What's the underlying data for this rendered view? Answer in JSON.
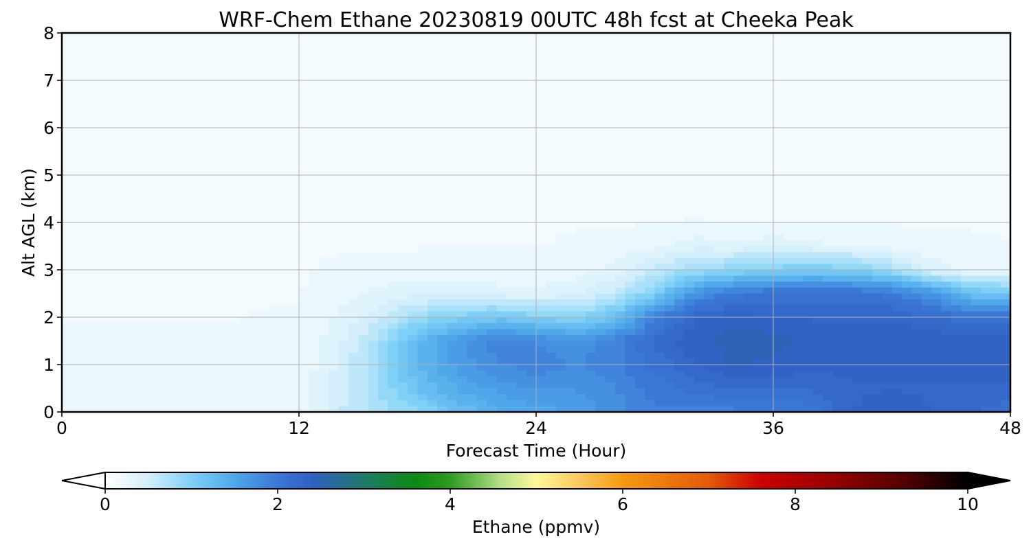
{
  "chart_data": {
    "type": "heatmap",
    "title": "WRF-Chem Ethane  20230819 00UTC 48h fcst at Cheeka Peak",
    "xlabel": "Forecast Time (Hour)",
    "ylabel": "Alt AGL (km)",
    "xlim": [
      0,
      48
    ],
    "ylim": [
      0,
      8
    ],
    "x_ticks": [
      0,
      12,
      24,
      36,
      48
    ],
    "y_ticks": [
      0,
      1,
      2,
      3,
      4,
      5,
      6,
      7,
      8
    ],
    "grid": true,
    "colorbar": {
      "label": "Ethane  (ppmv)",
      "range": [
        0,
        10
      ],
      "ticks": [
        0,
        2,
        4,
        6,
        8,
        10
      ],
      "extend": "both",
      "orientation": "horizontal",
      "stops": [
        {
          "v": 0,
          "c": "#ffffff"
        },
        {
          "v": 0.5,
          "c": "#d4effb"
        },
        {
          "v": 1.0,
          "c": "#7fd0f7"
        },
        {
          "v": 1.5,
          "c": "#4ea8ea"
        },
        {
          "v": 2.0,
          "c": "#3b78d6"
        },
        {
          "v": 2.4,
          "c": "#3060c4"
        },
        {
          "v": 3.0,
          "c": "#1f7a6a"
        },
        {
          "v": 3.6,
          "c": "#0a8a10"
        },
        {
          "v": 4.0,
          "c": "#2e9c1f"
        },
        {
          "v": 4.6,
          "c": "#b8e08a"
        },
        {
          "v": 5.0,
          "c": "#fff79a"
        },
        {
          "v": 5.6,
          "c": "#f8c050"
        },
        {
          "v": 6.0,
          "c": "#f59a10"
        },
        {
          "v": 7.0,
          "c": "#e35a08"
        },
        {
          "v": 7.6,
          "c": "#cc0000"
        },
        {
          "v": 8.4,
          "c": "#9a0000"
        },
        {
          "v": 9.2,
          "c": "#5a0000"
        },
        {
          "v": 10,
          "c": "#000000"
        }
      ]
    },
    "times": [
      0,
      4,
      8,
      12,
      14,
      16,
      18,
      20,
      22,
      24,
      26,
      28,
      30,
      32,
      34,
      36,
      38,
      40,
      42,
      44,
      46,
      48
    ],
    "altitudes": [
      0,
      0.5,
      1,
      1.5,
      2,
      2.5,
      3,
      3.5,
      4,
      5,
      6,
      7,
      8
    ],
    "values": [
      [
        0.3,
        0.28,
        0.2,
        0.22,
        0.55,
        0.75,
        0.9,
        1.2,
        1.4,
        1.5,
        1.6,
        1.75,
        1.9,
        1.9,
        1.9,
        1.9,
        2.0,
        2.3,
        2.45,
        2.3,
        2.2,
        2.1
      ],
      [
        0.22,
        0.22,
        0.2,
        0.22,
        0.5,
        0.8,
        1.2,
        1.45,
        1.6,
        1.7,
        1.7,
        1.8,
        2.0,
        2.1,
        2.2,
        2.2,
        2.2,
        2.3,
        2.3,
        2.3,
        2.3,
        2.3
      ],
      [
        0.2,
        0.2,
        0.2,
        0.22,
        0.45,
        0.8,
        1.3,
        1.6,
        1.8,
        1.9,
        1.8,
        1.9,
        2.1,
        2.3,
        2.45,
        2.4,
        2.35,
        2.35,
        2.4,
        2.4,
        2.4,
        2.4
      ],
      [
        0.2,
        0.2,
        0.2,
        0.22,
        0.4,
        0.75,
        1.3,
        1.65,
        1.9,
        1.8,
        1.7,
        1.9,
        2.2,
        2.4,
        2.5,
        2.5,
        2.4,
        2.4,
        2.4,
        2.4,
        2.4,
        2.4
      ],
      [
        0.18,
        0.18,
        0.18,
        0.2,
        0.32,
        0.5,
        0.8,
        1.0,
        1.1,
        1.0,
        0.9,
        1.2,
        1.9,
        2.3,
        2.4,
        2.3,
        2.3,
        2.3,
        2.3,
        2.2,
        2.1,
        2.1
      ],
      [
        0.18,
        0.18,
        0.18,
        0.18,
        0.25,
        0.35,
        0.4,
        0.4,
        0.35,
        0.33,
        0.4,
        0.6,
        1.0,
        1.7,
        2.0,
        2.1,
        2.1,
        2.1,
        2.0,
        1.7,
        1.2,
        1.1
      ],
      [
        0.18,
        0.18,
        0.18,
        0.18,
        0.2,
        0.22,
        0.24,
        0.24,
        0.24,
        0.24,
        0.26,
        0.35,
        0.6,
        0.8,
        0.9,
        1.0,
        1.05,
        1.0,
        0.8,
        0.4,
        0.28,
        0.28
      ],
      [
        0.18,
        0.18,
        0.18,
        0.18,
        0.18,
        0.18,
        0.18,
        0.18,
        0.18,
        0.18,
        0.2,
        0.22,
        0.26,
        0.4,
        0.35,
        0.4,
        0.35,
        0.3,
        0.25,
        0.22,
        0.2,
        0.2
      ],
      [
        0.18,
        0.18,
        0.18,
        0.18,
        0.18,
        0.18,
        0.18,
        0.18,
        0.18,
        0.18,
        0.18,
        0.18,
        0.18,
        0.19,
        0.18,
        0.18,
        0.18,
        0.18,
        0.18,
        0.18,
        0.18,
        0.16
      ],
      [
        0.18,
        0.18,
        0.16,
        0.18,
        0.18,
        0.18,
        0.14,
        0.14,
        0.14,
        0.14,
        0.18,
        0.18,
        0.18,
        0.18,
        0.18,
        0.18,
        0.18,
        0.18,
        0.18,
        0.18,
        0.14,
        0.14
      ],
      [
        0.14,
        0.14,
        0.14,
        0.14,
        0.14,
        0.14,
        0.14,
        0.14,
        0.14,
        0.14,
        0.14,
        0.18,
        0.18,
        0.18,
        0.18,
        0.18,
        0.18,
        0.18,
        0.14,
        0.14,
        0.14,
        0.14
      ],
      [
        0.14,
        0.14,
        0.14,
        0.14,
        0.14,
        0.14,
        0.14,
        0.14,
        0.14,
        0.14,
        0.14,
        0.14,
        0.18,
        0.18,
        0.18,
        0.18,
        0.18,
        0.18,
        0.14,
        0.14,
        0.14,
        0.14
      ],
      [
        0.14,
        0.14,
        0.14,
        0.14,
        0.14,
        0.14,
        0.14,
        0.14,
        0.14,
        0.14,
        0.14,
        0.14,
        0.16,
        0.18,
        0.18,
        0.18,
        0.18,
        0.14,
        0.14,
        0.14,
        0.14,
        0.14
      ]
    ]
  }
}
